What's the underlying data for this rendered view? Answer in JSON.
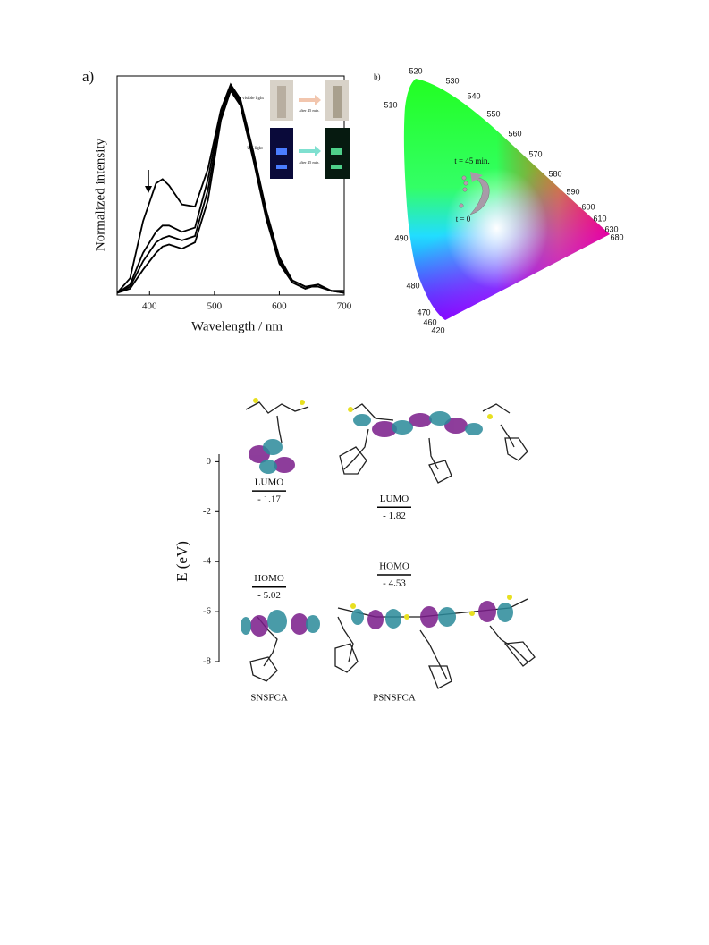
{
  "panel_labels": [
    "a)",
    "b)"
  ],
  "inset": {
    "visible": "visible light",
    "uv": "UV light",
    "after_top": "after 45 min.",
    "after_bottom": "after 45 min."
  },
  "cie": {
    "wavelengths": [
      "520",
      "530",
      "540",
      "550",
      "560",
      "570",
      "580",
      "590",
      "600",
      "610",
      "630",
      "680",
      "510",
      "490",
      "480",
      "470",
      "460",
      "420"
    ],
    "annotations": [
      "t = 45 min.",
      "t = 0"
    ]
  },
  "chart_data": [
    {
      "type": "line",
      "xlabel": "Wavelength / nm",
      "ylabel": "Normalized intensity",
      "x": [
        350,
        370,
        390,
        410,
        420,
        430,
        450,
        470,
        490,
        510,
        525,
        540,
        560,
        580,
        600,
        620,
        640,
        660,
        680,
        700
      ],
      "xlim": [
        350,
        700
      ],
      "xticks": [
        400,
        500,
        600,
        700
      ],
      "ylim": [
        0,
        1.04
      ],
      "series": [
        {
          "color": "#000000",
          "values": [
            0.01,
            0.08,
            0.35,
            0.53,
            0.55,
            0.52,
            0.43,
            0.42,
            0.6,
            0.88,
            1.0,
            0.93,
            0.68,
            0.4,
            0.18,
            0.07,
            0.04,
            0.04,
            0.02,
            0.02
          ]
        },
        {
          "color": "#000000",
          "values": [
            0.01,
            0.05,
            0.2,
            0.3,
            0.33,
            0.33,
            0.3,
            0.32,
            0.55,
            0.87,
            0.99,
            0.92,
            0.66,
            0.38,
            0.17,
            0.07,
            0.04,
            0.05,
            0.02,
            0.02
          ]
        },
        {
          "color": "#000000",
          "values": [
            0.01,
            0.04,
            0.16,
            0.25,
            0.27,
            0.28,
            0.26,
            0.28,
            0.5,
            0.85,
            0.98,
            0.91,
            0.65,
            0.37,
            0.16,
            0.06,
            0.03,
            0.05,
            0.02,
            0.01
          ]
        },
        {
          "color": "#000000",
          "values": [
            0.01,
            0.03,
            0.12,
            0.2,
            0.23,
            0.24,
            0.22,
            0.25,
            0.45,
            0.83,
            0.97,
            0.9,
            0.64,
            0.36,
            0.15,
            0.06,
            0.03,
            0.05,
            0.02,
            0.01
          ]
        }
      ]
    },
    {
      "type": "level",
      "ylabel": "E (eV)",
      "categories": [
        "SNSFCA",
        "PSNSFCA"
      ],
      "ylim": [
        0.3,
        -8
      ],
      "yticks": [
        0,
        -2,
        -4,
        -6,
        -8
      ],
      "series": [
        {
          "name": "LUMO",
          "color": "#000000",
          "values": [
            -1.17,
            -1.82
          ],
          "value_labels": [
            "- 1.17",
            "- 1.82"
          ]
        },
        {
          "name": "HOMO",
          "color": "#000000",
          "values": [
            -5.02,
            -4.53
          ],
          "value_labels": [
            "- 5.02",
            "- 4.53"
          ]
        }
      ]
    }
  ]
}
